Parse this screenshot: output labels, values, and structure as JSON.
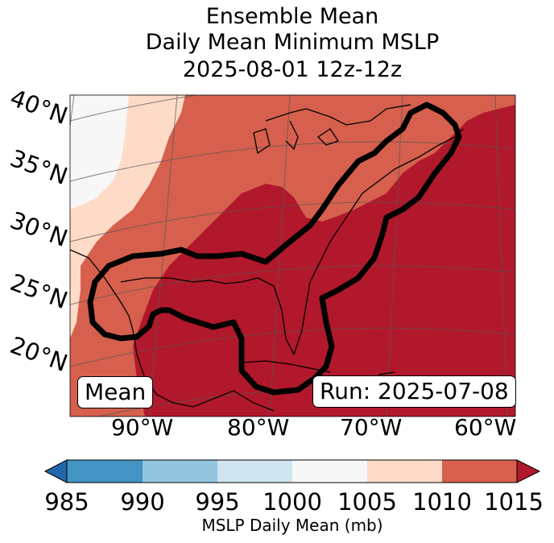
{
  "title": {
    "line1": "Ensemble Mean",
    "line2": "Daily Mean Minimum MSLP",
    "line3": "2025-08-01 12z-12z"
  },
  "map": {
    "lat_labels": [
      "40°N",
      "35°N",
      "30°N",
      "25°N",
      "20°N"
    ],
    "lon_labels": [
      "90°W",
      "80°W",
      "70°W",
      "60°W"
    ],
    "mean_box": "Mean",
    "run_box": "Run: 2025-07-08"
  },
  "colorbar": {
    "label": "MSLP Daily Mean (mb)",
    "ticks": [
      "985",
      "990",
      "995",
      "1000",
      "1005",
      "1010",
      "1015"
    ],
    "colors": [
      "#2166ac",
      "#4393c3",
      "#92c5de",
      "#d1e5f0",
      "#f7f7f7",
      "#fddbc7",
      "#d6604d",
      "#b2182b"
    ]
  }
}
